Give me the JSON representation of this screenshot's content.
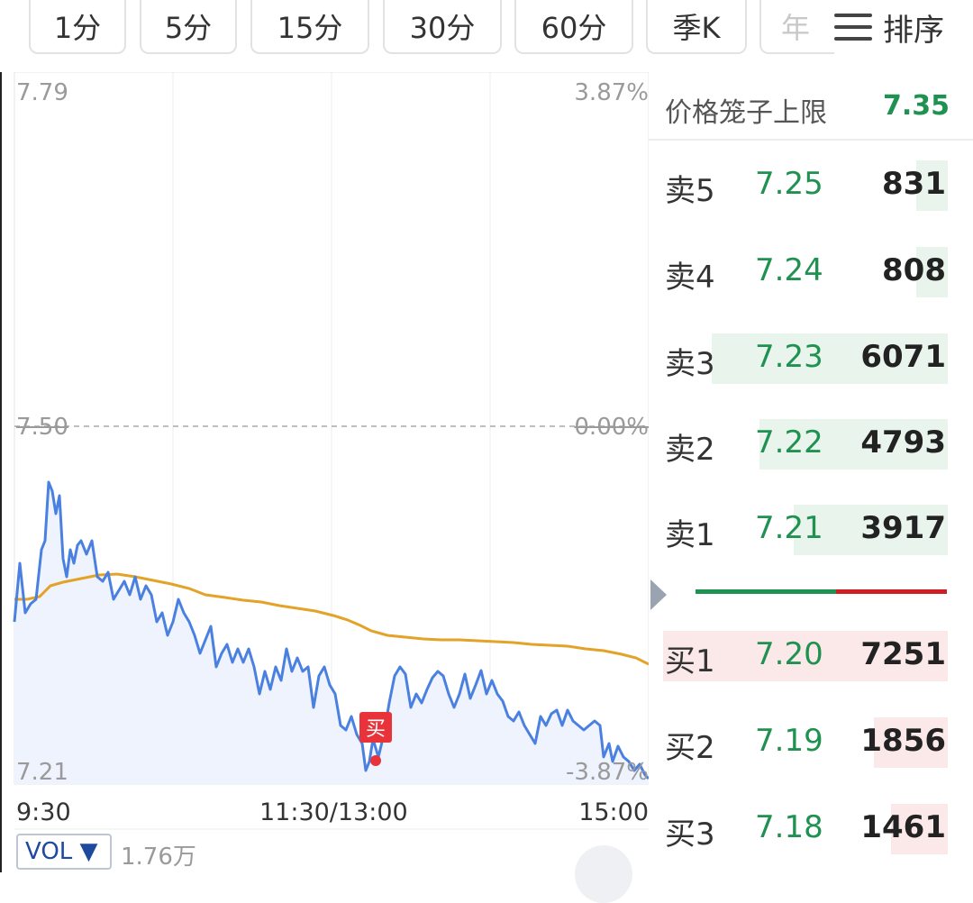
{
  "tabs": [
    {
      "label": "1分"
    },
    {
      "label": "5分"
    },
    {
      "label": "15分"
    },
    {
      "label": "30分"
    },
    {
      "label": "60分"
    },
    {
      "label": "季K"
    },
    {
      "label": "年"
    }
  ],
  "sort_label": "排序",
  "chart": {
    "price_max": "7.79",
    "price_mid": "7.50",
    "price_min": "7.21",
    "pct_max": "3.87%",
    "pct_mid": "0.00%",
    "pct_min": "-3.87%",
    "time_start": "9:30",
    "time_mid": "11:30/13:00",
    "time_end": "15:00",
    "buy_marker": "买",
    "vol_label": "VOL ▼",
    "vol_value": "1.76万",
    "colors": {
      "price_line": "#4a80e0",
      "avg_line": "#e3a228",
      "fill": "#eef3fd"
    }
  },
  "order_book": {
    "cage_label": "价格笼子上限",
    "cage_value": "7.35",
    "asks": [
      {
        "label": "卖5",
        "price": "7.25",
        "volume": "831",
        "depth": 0.11
      },
      {
        "label": "卖4",
        "price": "7.24",
        "volume": "808",
        "depth": 0.11
      },
      {
        "label": "卖3",
        "price": "7.23",
        "volume": "6071",
        "depth": 0.83
      },
      {
        "label": "卖2",
        "price": "7.22",
        "volume": "4793",
        "depth": 0.66
      },
      {
        "label": "卖1",
        "price": "7.21",
        "volume": "3917",
        "depth": 0.54
      }
    ],
    "bids": [
      {
        "label": "买1",
        "price": "7.20",
        "volume": "7251",
        "depth": 1.0
      },
      {
        "label": "买2",
        "price": "7.19",
        "volume": "1856",
        "depth": 0.26
      },
      {
        "label": "买3",
        "price": "7.18",
        "volume": "1461",
        "depth": 0.2
      }
    ],
    "colors": {
      "ask_bar": "#e8f4ec",
      "bid_bar": "#fbe8e8",
      "price": "#1f9151"
    }
  }
}
